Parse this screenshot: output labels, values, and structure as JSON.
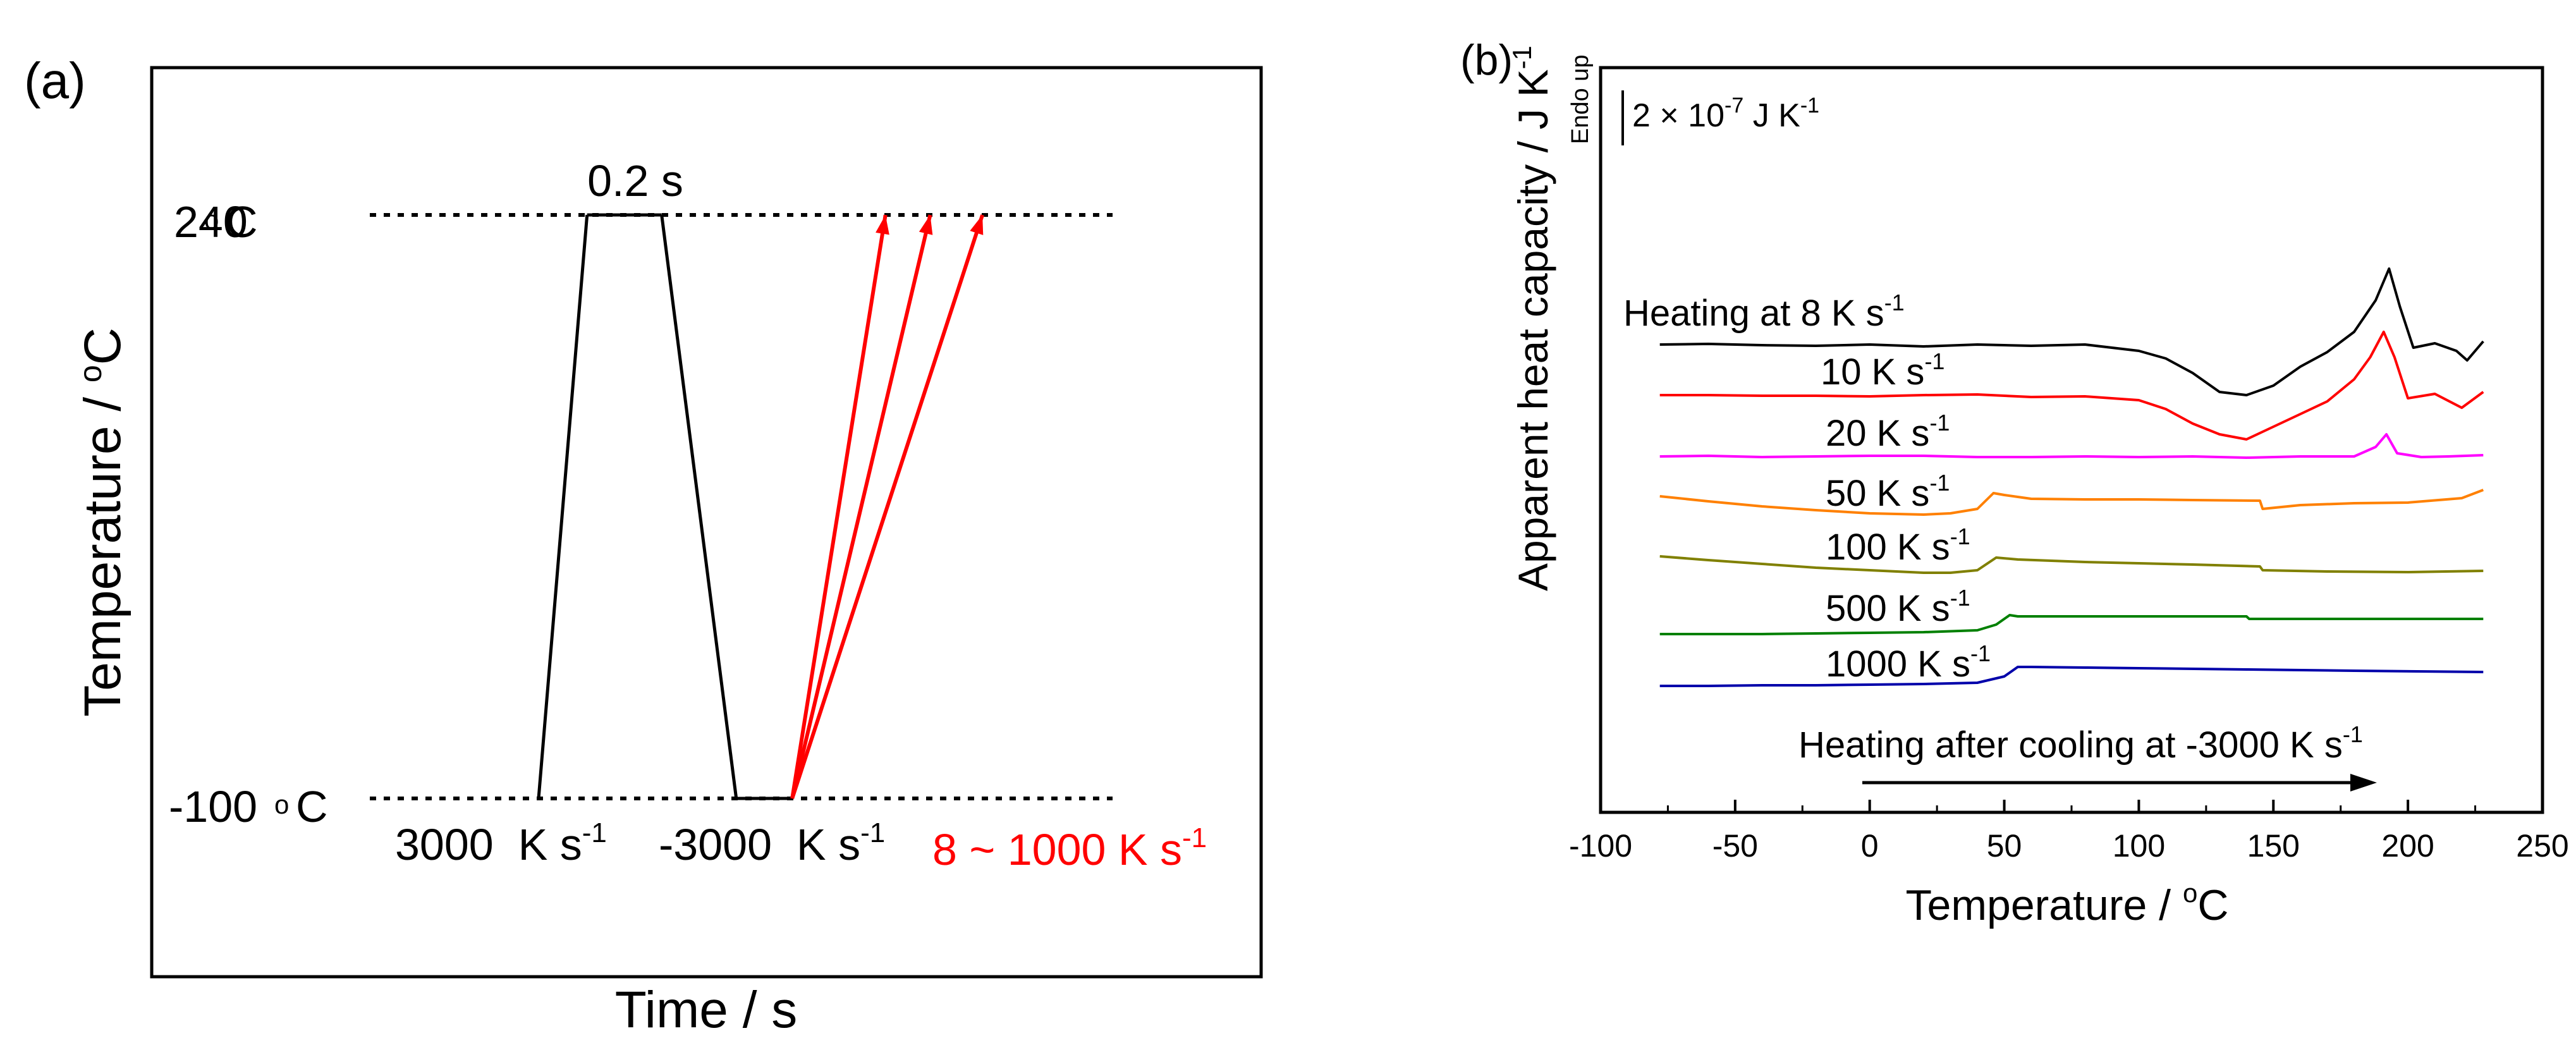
{
  "panel_a": {
    "label": "(a)",
    "xlabel": "Time / s",
    "ylabel": "Temperature / °C",
    "hold_label": "0.2 s",
    "ticks": [
      {
        "value": 240,
        "label": "240 °C"
      },
      {
        "value": -100,
        "label": "-100 °C"
      }
    ],
    "rate_labels": [
      "3000  K s-1",
      "-3000  K s-1",
      "8 ~ 1000 K s-1"
    ],
    "colors": {
      "protocol": "#000000",
      "heating": "#ff0000"
    }
  },
  "panel_b": {
    "label": "(b)",
    "xlabel": "Temperature / °C",
    "ylabel": "Apparent heat capacity / J K-1",
    "endo_label": "Endo up",
    "scale_label": "2 × 10-7 J K-1",
    "annotation": "Heating after cooling at -3000 K s-1"
  },
  "chart_data": [
    {
      "type": "line",
      "subtitle": "(a)",
      "xlabel": "Time / s",
      "ylabel": "Temperature / °C",
      "yticks": [
        240,
        -100
      ],
      "series": [
        {
          "name": "3000  K s-1",
          "color": "#000000",
          "x": [
            0.0,
            0.13
          ],
          "y": [
            -100,
            240
          ]
        },
        {
          "name": "0.2 s",
          "color": "#000000",
          "x": [
            0.13,
            0.33
          ],
          "y": [
            240,
            240
          ]
        },
        {
          "name": "-3000  K s-1",
          "color": "#000000",
          "x": [
            0.33,
            0.53
          ],
          "y": [
            240,
            -100
          ]
        },
        {
          "name": "",
          "color": "#000000",
          "x": [
            0.53,
            0.68
          ],
          "y": [
            -100,
            -100
          ]
        },
        {
          "name": "8 ~ 1000 K s-1",
          "color": "#ff0000",
          "x": [
            0.68,
            0.93
          ],
          "y": [
            -100,
            240
          ]
        },
        {
          "name": "8 ~ 1000 K s-1",
          "color": "#ff0000",
          "x": [
            0.68,
            1.05
          ],
          "y": [
            -100,
            240
          ]
        },
        {
          "name": "8 ~ 1000 K s-1",
          "color": "#ff0000",
          "x": [
            0.68,
            1.19
          ],
          "y": [
            -100,
            240
          ]
        }
      ]
    },
    {
      "type": "line",
      "subtitle": "(b)",
      "xlabel": "Temperature / °C",
      "ylabel": "Apparent heat capacity / J K-1",
      "xlim": [
        -100,
        250
      ],
      "xticks": [
        -100,
        -50,
        0,
        50,
        100,
        150,
        200,
        250
      ],
      "y_units": "scale bar 2 × 10-7 J K-1, curves vertically offset",
      "series": [
        {
          "name": "Heating at 8 K s-1",
          "color": "#000000",
          "x": [
            -78,
            -60,
            -40,
            -20,
            0,
            20,
            40,
            60,
            80,
            100,
            110,
            120,
            130,
            140,
            150,
            160,
            170,
            180,
            188,
            193,
            197,
            202,
            210,
            218,
            222,
            228
          ],
          "y": [
            0.0,
            0.01,
            -0.01,
            -0.02,
            0.0,
            -0.03,
            0.0,
            -0.02,
            0.0,
            -0.1,
            -0.22,
            -0.45,
            -0.75,
            -0.8,
            -0.65,
            -0.35,
            -0.12,
            0.2,
            0.7,
            1.2,
            0.6,
            -0.05,
            0.02,
            -0.1,
            -0.25,
            0.05
          ]
        },
        {
          "name": "10 K s-1",
          "color": "#ff0000",
          "x": [
            -78,
            -60,
            -40,
            -20,
            0,
            20,
            40,
            60,
            80,
            100,
            110,
            120,
            130,
            140,
            145,
            150,
            160,
            170,
            180,
            186,
            191,
            195,
            200,
            210,
            220,
            228
          ],
          "y": [
            0.0,
            0.0,
            -0.01,
            -0.01,
            -0.02,
            0.0,
            0.01,
            -0.03,
            -0.02,
            -0.08,
            -0.22,
            -0.45,
            -0.62,
            -0.7,
            -0.6,
            -0.5,
            -0.3,
            -0.1,
            0.25,
            0.6,
            1.0,
            0.6,
            -0.05,
            0.02,
            -0.2,
            0.05
          ]
        },
        {
          "name": "20 K s-1",
          "color": "#ff00ff",
          "x": [
            -78,
            -60,
            -40,
            -20,
            0,
            20,
            40,
            60,
            80,
            100,
            120,
            140,
            160,
            180,
            188,
            192,
            196,
            205,
            215,
            228
          ],
          "y": [
            0.0,
            0.01,
            -0.01,
            0.0,
            0.01,
            0.01,
            -0.01,
            -0.01,
            0.0,
            -0.01,
            0.0,
            -0.02,
            0.0,
            0.0,
            0.15,
            0.35,
            0.05,
            -0.01,
            0.0,
            0.02
          ]
        },
        {
          "name": "50 K s-1",
          "color": "#ff8000",
          "x": [
            -78,
            -60,
            -40,
            -20,
            0,
            20,
            30,
            40,
            46,
            50,
            60,
            80,
            100,
            120,
            145,
            146,
            160,
            180,
            200,
            220,
            228
          ],
          "y": [
            0.0,
            -0.08,
            -0.16,
            -0.22,
            -0.27,
            -0.29,
            -0.27,
            -0.2,
            0.05,
            0.02,
            -0.04,
            -0.05,
            -0.05,
            -0.06,
            -0.07,
            -0.2,
            -0.14,
            -0.11,
            -0.1,
            -0.03,
            0.1
          ]
        },
        {
          "name": "100 K s-1",
          "color": "#808000",
          "x": [
            -78,
            -60,
            -40,
            -20,
            0,
            20,
            30,
            40,
            47,
            55,
            80,
            100,
            120,
            145,
            146,
            170,
            200,
            228
          ],
          "y": [
            0.0,
            -0.06,
            -0.12,
            -0.18,
            -0.22,
            -0.26,
            -0.26,
            -0.22,
            -0.02,
            -0.05,
            -0.09,
            -0.11,
            -0.13,
            -0.16,
            -0.22,
            -0.24,
            -0.25,
            -0.23
          ]
        },
        {
          "name": "500 K s-1",
          "color": "#008000",
          "x": [
            -78,
            -60,
            -40,
            -20,
            0,
            20,
            40,
            47,
            52,
            55,
            80,
            100,
            140,
            141,
            180,
            228
          ],
          "y": [
            0.0,
            0.0,
            0.0,
            0.01,
            0.02,
            0.03,
            0.06,
            0.15,
            0.3,
            0.28,
            0.28,
            0.28,
            0.28,
            0.24,
            0.24,
            0.24
          ]
        },
        {
          "name": "1000 K s-1",
          "color": "#0000aa",
          "x": [
            -78,
            -60,
            -40,
            -20,
            0,
            20,
            40,
            50,
            55,
            60,
            80,
            100,
            140,
            180,
            228
          ],
          "y": [
            0.0,
            0.0,
            0.01,
            0.01,
            0.02,
            0.03,
            0.05,
            0.15,
            0.3,
            0.3,
            0.29,
            0.28,
            0.26,
            0.24,
            0.22
          ]
        }
      ]
    }
  ]
}
